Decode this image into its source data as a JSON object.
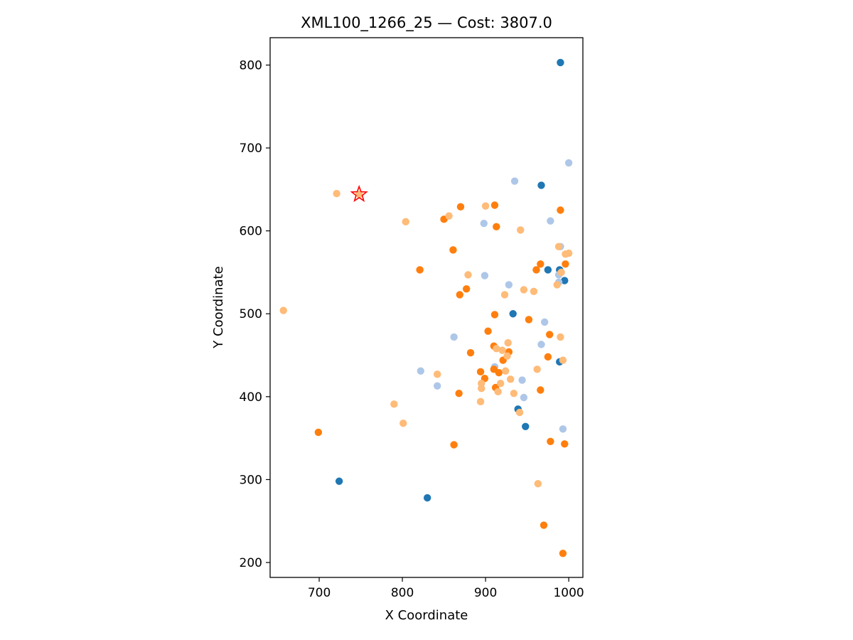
{
  "chart_data": {
    "type": "scatter",
    "title": "XML100_1266_25  —  Cost: 3807.0",
    "xlabel": "X Coordinate",
    "ylabel": "Y Coordinate",
    "xlim": [
      641,
      1017
    ],
    "ylim": [
      182,
      833
    ],
    "xticks": [
      700,
      800,
      900,
      1000
    ],
    "yticks": [
      200,
      300,
      400,
      500,
      600,
      700,
      800
    ],
    "grid": false,
    "legend": "none",
    "depot": {
      "x": 748,
      "y": 644,
      "marker": "star",
      "color": "#ff0000"
    },
    "series": [
      {
        "color": "#1f77b4",
        "points": [
          [
            990,
            803
          ],
          [
            967,
            655
          ],
          [
            975,
            553
          ],
          [
            989,
            553
          ],
          [
            995,
            540
          ],
          [
            933,
            500
          ],
          [
            989,
            442
          ],
          [
            939,
            385
          ],
          [
            948,
            364
          ],
          [
            724,
            298
          ],
          [
            830,
            278
          ]
        ]
      },
      {
        "color": "#aec7e8",
        "points": [
          [
            1000,
            682
          ],
          [
            935,
            660
          ],
          [
            978,
            612
          ],
          [
            898,
            609
          ],
          [
            990,
            581
          ],
          [
            988,
            547
          ],
          [
            899,
            546
          ],
          [
            928,
            535
          ],
          [
            988,
            538
          ],
          [
            971,
            490
          ],
          [
            862,
            472
          ],
          [
            967,
            463
          ],
          [
            911,
            436
          ],
          [
            822,
            431
          ],
          [
            944,
            420
          ],
          [
            842,
            413
          ],
          [
            946,
            399
          ],
          [
            993,
            361
          ]
        ]
      },
      {
        "color": "#ff7f0e",
        "points": [
          [
            870,
            629
          ],
          [
            911,
            631
          ],
          [
            990,
            625
          ],
          [
            850,
            614
          ],
          [
            913,
            605
          ],
          [
            861,
            577
          ],
          [
            966,
            560
          ],
          [
            996,
            560
          ],
          [
            821,
            553
          ],
          [
            961,
            553
          ],
          [
            877,
            530
          ],
          [
            869,
            523
          ],
          [
            911,
            499
          ],
          [
            952,
            493
          ],
          [
            903,
            479
          ],
          [
            977,
            475
          ],
          [
            910,
            461
          ],
          [
            928,
            454
          ],
          [
            882,
            453
          ],
          [
            975,
            448
          ],
          [
            921,
            444
          ],
          [
            910,
            433
          ],
          [
            916,
            429
          ],
          [
            894,
            430
          ],
          [
            899,
            422
          ],
          [
            912,
            411
          ],
          [
            966,
            408
          ],
          [
            868,
            404
          ],
          [
            978,
            346
          ],
          [
            995,
            343
          ],
          [
            699,
            357
          ],
          [
            862,
            342
          ],
          [
            970,
            245
          ],
          [
            993,
            211
          ]
        ]
      },
      {
        "color": "#ffbb78",
        "points": [
          [
            721,
            645
          ],
          [
            748,
            644
          ],
          [
            900,
            630
          ],
          [
            856,
            618
          ],
          [
            804,
            611
          ],
          [
            942,
            601
          ],
          [
            988,
            581
          ],
          [
            996,
            572
          ],
          [
            1000,
            573
          ],
          [
            991,
            550
          ],
          [
            879,
            547
          ],
          [
            986,
            535
          ],
          [
            946,
            529
          ],
          [
            958,
            527
          ],
          [
            923,
            523
          ],
          [
            657,
            504
          ],
          [
            927,
            465
          ],
          [
            913,
            458
          ],
          [
            920,
            456
          ],
          [
            990,
            472
          ],
          [
            993,
            444
          ],
          [
            926,
            449
          ],
          [
            962,
            433
          ],
          [
            924,
            431
          ],
          [
            842,
            427
          ],
          [
            930,
            421
          ],
          [
            895,
            416
          ],
          [
            918,
            416
          ],
          [
            895,
            410
          ],
          [
            934,
            404
          ],
          [
            915,
            406
          ],
          [
            941,
            381
          ],
          [
            894,
            394
          ],
          [
            790,
            391
          ],
          [
            801,
            368
          ],
          [
            963,
            295
          ]
        ]
      }
    ]
  }
}
